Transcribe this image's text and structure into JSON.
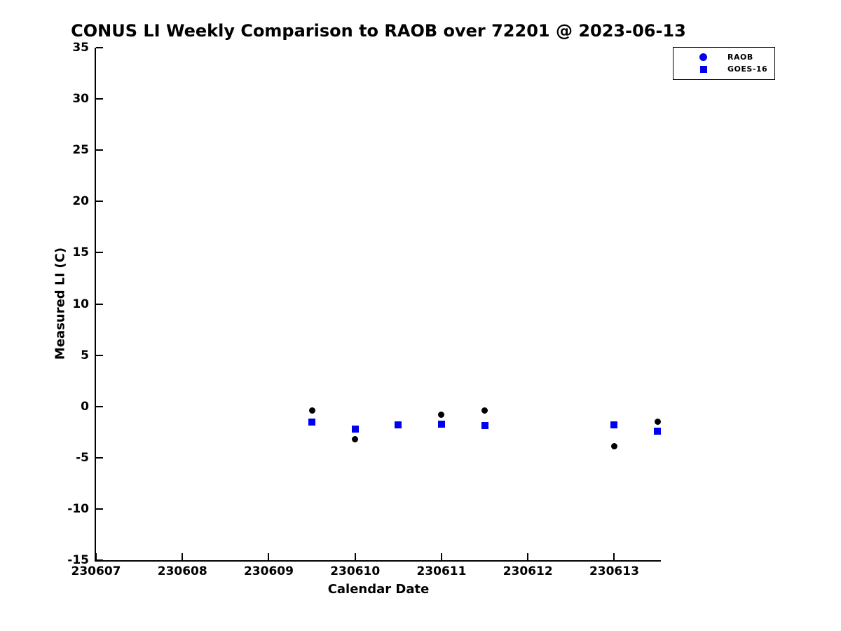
{
  "title": "CONUS LI Weekly Comparison to RAOB over 72201 @ 2023-06-13",
  "chart_data": {
    "type": "scatter",
    "title": "CONUS LI Weekly Comparison to RAOB over 72201 @ 2023-06-13",
    "xlabel": "Calendar Date",
    "ylabel": "Measured LI (C)",
    "xlim": [
      230607,
      230613.54
    ],
    "ylim": [
      -15,
      35
    ],
    "xticks": [
      230607,
      230608,
      230609,
      230610,
      230611,
      230612,
      230613
    ],
    "yticks": [
      -15,
      -10,
      -5,
      0,
      5,
      10,
      15,
      20,
      25,
      30,
      35
    ],
    "grid": false,
    "legend_position": "top-right",
    "series": [
      {
        "name": "RAOB",
        "marker": "circle",
        "color": "#000000",
        "legend_marker_color": "#0000ee",
        "points": [
          [
            230609.5,
            -0.4
          ],
          [
            230610.0,
            -3.2
          ],
          [
            230610.5,
            -1.8
          ],
          [
            230611.0,
            -0.8
          ],
          [
            230611.5,
            -0.4
          ],
          [
            230613.0,
            -3.9
          ],
          [
            230613.5,
            -1.5
          ]
        ]
      },
      {
        "name": "GOES-16",
        "marker": "square",
        "color": "#0000ee",
        "legend_marker_color": "#0000ee",
        "points": [
          [
            230609.5,
            -1.5
          ],
          [
            230610.0,
            -2.2
          ],
          [
            230610.5,
            -1.8
          ],
          [
            230611.0,
            -1.7
          ],
          [
            230611.5,
            -1.9
          ],
          [
            230613.0,
            -1.8
          ],
          [
            230613.5,
            -2.4
          ]
        ]
      }
    ]
  }
}
